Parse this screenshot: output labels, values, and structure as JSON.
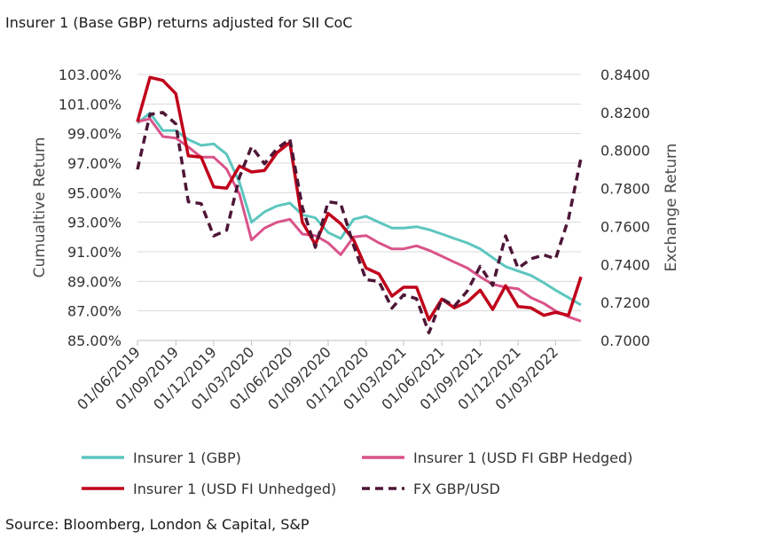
{
  "chart_data": {
    "type": "line",
    "title": "Insurer 1 (Base GBP) returns adjusted for SII CoC",
    "source": "Source: Bloomberg, London & Capital, S&P",
    "ylabel": "Cumualtive Return",
    "y2label": "Exchange Return",
    "ylim": [
      85,
      103
    ],
    "y2lim": [
      0.7,
      0.84
    ],
    "x_start": "2019-06-01",
    "x_end": "2022-05-01",
    "xticks": [
      "01/06/2019",
      "01/09/2019",
      "01/12/2019",
      "01/03/2020",
      "01/06/2020",
      "01/09/2020",
      "01/12/2020",
      "01/03/2021",
      "01/06/2021",
      "01/09/2021",
      "01/12/2021",
      "01/03/2022"
    ],
    "yticks": [
      "103.00%",
      "101.00%",
      "99.00%",
      "97.00%",
      "95.00%",
      "93.00%",
      "91.00%",
      "89.00%",
      "87.00%",
      "85.00%"
    ],
    "y2ticks": [
      "0.8400",
      "0.8200",
      "0.8000",
      "0.7800",
      "0.7600",
      "0.7400",
      "0.7200",
      "0.7000"
    ],
    "grid": "horizontal",
    "legend_position": "bottom",
    "series": [
      {
        "name": "Insurer 1 (GBP)",
        "axis": "left",
        "color": "#5cc6bf",
        "style": "solid",
        "points": [
          [
            "2019-06-01",
            99.7
          ],
          [
            "2019-07-01",
            100.4
          ],
          [
            "2019-08-01",
            99.2
          ],
          [
            "2019-09-01",
            99.2
          ],
          [
            "2019-10-01",
            98.6
          ],
          [
            "2019-11-01",
            98.2
          ],
          [
            "2019-12-01",
            98.3
          ],
          [
            "2020-01-01",
            97.6
          ],
          [
            "2020-02-01",
            95.7
          ],
          [
            "2020-03-01",
            93.0
          ],
          [
            "2020-04-01",
            93.7
          ],
          [
            "2020-05-01",
            94.1
          ],
          [
            "2020-06-01",
            94.3
          ],
          [
            "2020-07-01",
            93.5
          ],
          [
            "2020-08-01",
            93.3
          ],
          [
            "2020-09-01",
            92.3
          ],
          [
            "2020-10-01",
            91.9
          ],
          [
            "2020-11-01",
            93.2
          ],
          [
            "2020-12-01",
            93.4
          ],
          [
            "2021-01-01",
            93.0
          ],
          [
            "2021-02-01",
            92.6
          ],
          [
            "2021-03-01",
            92.6
          ],
          [
            "2021-04-01",
            92.7
          ],
          [
            "2021-05-01",
            92.5
          ],
          [
            "2021-06-01",
            92.2
          ],
          [
            "2021-07-01",
            91.9
          ],
          [
            "2021-08-01",
            91.6
          ],
          [
            "2021-09-01",
            91.2
          ],
          [
            "2021-10-01",
            90.6
          ],
          [
            "2021-11-01",
            90.0
          ],
          [
            "2021-12-01",
            89.7
          ],
          [
            "2022-01-01",
            89.4
          ],
          [
            "2022-02-01",
            88.9
          ],
          [
            "2022-03-01",
            88.4
          ],
          [
            "2022-04-01",
            87.9
          ],
          [
            "2022-05-01",
            87.4
          ]
        ]
      },
      {
        "name": "Insurer 1 (USD FI GBP Hedged)",
        "axis": "left",
        "color": "#d9538a",
        "style": "solid",
        "points": [
          [
            "2019-06-01",
            99.8
          ],
          [
            "2019-07-01",
            100.0
          ],
          [
            "2019-08-01",
            98.8
          ],
          [
            "2019-09-01",
            98.7
          ],
          [
            "2019-10-01",
            98.1
          ],
          [
            "2019-11-01",
            97.4
          ],
          [
            "2019-12-01",
            97.4
          ],
          [
            "2020-01-01",
            96.6
          ],
          [
            "2020-02-01",
            94.9
          ],
          [
            "2020-03-01",
            91.8
          ],
          [
            "2020-04-01",
            92.6
          ],
          [
            "2020-05-01",
            93.0
          ],
          [
            "2020-06-01",
            93.2
          ],
          [
            "2020-07-01",
            92.2
          ],
          [
            "2020-08-01",
            92.1
          ],
          [
            "2020-09-01",
            91.6
          ],
          [
            "2020-10-01",
            90.8
          ],
          [
            "2020-11-01",
            92.0
          ],
          [
            "2020-12-01",
            92.1
          ],
          [
            "2021-01-01",
            91.6
          ],
          [
            "2021-02-01",
            91.2
          ],
          [
            "2021-03-01",
            91.2
          ],
          [
            "2021-04-01",
            91.4
          ],
          [
            "2021-05-01",
            91.1
          ],
          [
            "2021-06-01",
            90.7
          ],
          [
            "2021-07-01",
            90.3
          ],
          [
            "2021-08-01",
            89.9
          ],
          [
            "2021-09-01",
            89.3
          ],
          [
            "2021-10-01",
            88.8
          ],
          [
            "2021-11-01",
            88.6
          ],
          [
            "2021-12-01",
            88.5
          ],
          [
            "2022-01-01",
            87.9
          ],
          [
            "2022-02-01",
            87.5
          ],
          [
            "2022-03-01",
            87.0
          ],
          [
            "2022-04-01",
            86.6
          ],
          [
            "2022-05-01",
            86.3
          ]
        ]
      },
      {
        "name": "Insurer 1 (USD FI Unhedged)",
        "axis": "left",
        "color": "#c0001a",
        "style": "solid",
        "points": [
          [
            "2019-06-01",
            99.8
          ],
          [
            "2019-07-01",
            102.8
          ],
          [
            "2019-08-01",
            102.6
          ],
          [
            "2019-09-01",
            101.7
          ],
          [
            "2019-10-01",
            97.5
          ],
          [
            "2019-11-01",
            97.4
          ],
          [
            "2019-12-01",
            95.4
          ],
          [
            "2020-01-01",
            95.3
          ],
          [
            "2020-02-01",
            96.8
          ],
          [
            "2020-03-01",
            96.4
          ],
          [
            "2020-04-01",
            96.5
          ],
          [
            "2020-05-01",
            97.7
          ],
          [
            "2020-06-01",
            98.4
          ],
          [
            "2020-07-01",
            93.0
          ],
          [
            "2020-08-01",
            91.5
          ],
          [
            "2020-09-01",
            93.6
          ],
          [
            "2020-10-01",
            92.9
          ],
          [
            "2020-11-01",
            91.8
          ],
          [
            "2020-12-01",
            89.9
          ],
          [
            "2021-01-01",
            89.5
          ],
          [
            "2021-02-01",
            88.0
          ],
          [
            "2021-03-01",
            88.6
          ],
          [
            "2021-04-01",
            88.6
          ],
          [
            "2021-05-01",
            86.4
          ],
          [
            "2021-06-01",
            87.8
          ],
          [
            "2021-07-01",
            87.2
          ],
          [
            "2021-08-01",
            87.6
          ],
          [
            "2021-09-01",
            88.4
          ],
          [
            "2021-10-01",
            87.1
          ],
          [
            "2021-11-01",
            88.7
          ],
          [
            "2021-12-01",
            87.3
          ],
          [
            "2022-01-01",
            87.2
          ],
          [
            "2022-02-01",
            86.7
          ],
          [
            "2022-03-01",
            86.9
          ],
          [
            "2022-04-01",
            86.7
          ],
          [
            "2022-05-01",
            89.3
          ]
        ]
      },
      {
        "name": "FX GBP/USD",
        "axis": "right",
        "color": "#4d1636",
        "style": "dashed",
        "points": [
          [
            "2019-06-01",
            0.79
          ],
          [
            "2019-07-01",
            0.819
          ],
          [
            "2019-08-01",
            0.82
          ],
          [
            "2019-09-01",
            0.814
          ],
          [
            "2019-10-01",
            0.773
          ],
          [
            "2019-11-01",
            0.772
          ],
          [
            "2019-12-01",
            0.755
          ],
          [
            "2020-01-01",
            0.758
          ],
          [
            "2020-02-01",
            0.786
          ],
          [
            "2020-03-01",
            0.802
          ],
          [
            "2020-04-01",
            0.793
          ],
          [
            "2020-05-01",
            0.801
          ],
          [
            "2020-06-01",
            0.806
          ],
          [
            "2020-07-01",
            0.77
          ],
          [
            "2020-08-01",
            0.749
          ],
          [
            "2020-09-01",
            0.773
          ],
          [
            "2020-10-01",
            0.772
          ],
          [
            "2020-11-01",
            0.75
          ],
          [
            "2020-12-01",
            0.732
          ],
          [
            "2021-01-01",
            0.731
          ],
          [
            "2021-02-01",
            0.717
          ],
          [
            "2021-03-01",
            0.724
          ],
          [
            "2021-04-01",
            0.722
          ],
          [
            "2021-05-01",
            0.704
          ],
          [
            "2021-06-01",
            0.722
          ],
          [
            "2021-07-01",
            0.718
          ],
          [
            "2021-08-01",
            0.726
          ],
          [
            "2021-09-01",
            0.739
          ],
          [
            "2021-10-01",
            0.729
          ],
          [
            "2021-11-01",
            0.755
          ],
          [
            "2021-12-01",
            0.738
          ],
          [
            "2022-01-01",
            0.743
          ],
          [
            "2022-02-01",
            0.745
          ],
          [
            "2022-03-01",
            0.743
          ],
          [
            "2022-04-01",
            0.764
          ],
          [
            "2022-05-01",
            0.796
          ]
        ]
      }
    ]
  }
}
